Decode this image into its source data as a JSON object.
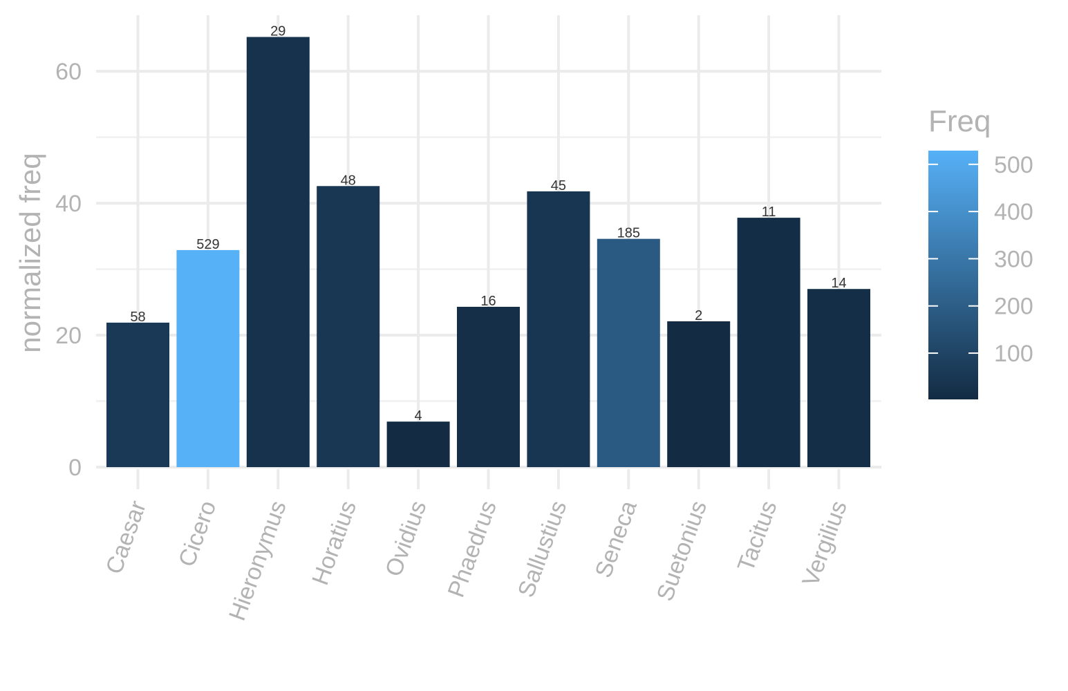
{
  "chart_data": {
    "type": "bar",
    "categories": [
      "Caesar",
      "Cicero",
      "Hieronymus",
      "Horatius",
      "Ovidius",
      "Phaedrus",
      "Sallustius",
      "Seneca",
      "Suetonius",
      "Tacitus",
      "Vergilius"
    ],
    "values": [
      21.9,
      32.9,
      65.2,
      42.6,
      6.9,
      24.3,
      41.8,
      34.6,
      22.1,
      37.8,
      27.0
    ],
    "freq": [
      58,
      529,
      29,
      48,
      4,
      16,
      45,
      185,
      2,
      11,
      14
    ],
    "data_labels": [
      "58",
      "529",
      "29",
      "48",
      "4",
      "16",
      "45",
      "185",
      "2",
      "11",
      "14"
    ],
    "ylabel": "normalized freq",
    "xlabel": "",
    "ylim": [
      0,
      68.5
    ],
    "y_ticks": [
      0,
      20,
      40,
      60
    ],
    "grid": true,
    "legend": {
      "title": "Freq",
      "placement": "right",
      "range": [
        2,
        529
      ],
      "ticks": [
        100,
        200,
        300,
        400,
        500
      ],
      "low_color": "#132B43",
      "high_color": "#56B1F7"
    }
  }
}
